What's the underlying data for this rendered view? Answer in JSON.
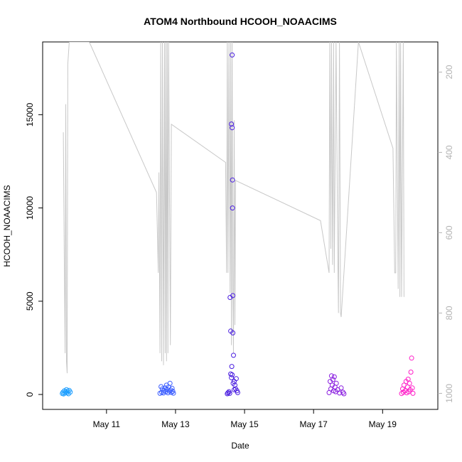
{
  "chart_data": {
    "type": "scatter",
    "title": "ATOM4 Northbound HCOOH_NOAACIMS",
    "xlabel": "Date",
    "ylabel": "HCOOH_NOAACIMS",
    "x_unit": "day of May",
    "xlim": [
      9.15,
      20.6
    ],
    "ylim": [
      -800,
      18900
    ],
    "x_ticks": [
      {
        "value": 11,
        "label": "May 11"
      },
      {
        "value": 13,
        "label": "May 13"
      },
      {
        "value": 15,
        "label": "May 15"
      },
      {
        "value": 17,
        "label": "May 17"
      },
      {
        "value": 19,
        "label": "May 19"
      }
    ],
    "y_ticks": [
      0,
      5000,
      10000,
      15000
    ],
    "right_axis": {
      "ticks": [
        200,
        400,
        600,
        800,
        1000
      ],
      "range_top_to_bottom": [
        125,
        1040
      ],
      "inverted": true,
      "color": "#b3b3b3",
      "line_color": "#c8c8c8"
    },
    "point_colors_by_flight": [
      "#1e90ff",
      "#2b6cff",
      "#3a1eff",
      "#8a1eff",
      "#ff1ec8"
    ],
    "series": [
      {
        "color": "#1e9fff",
        "points": [
          [
            9.72,
            50
          ],
          [
            9.74,
            120
          ],
          [
            9.76,
            30
          ],
          [
            9.78,
            200
          ],
          [
            9.8,
            80
          ],
          [
            9.82,
            150
          ],
          [
            9.84,
            260
          ],
          [
            9.86,
            90
          ],
          [
            9.88,
            180
          ],
          [
            9.9,
            40
          ],
          [
            9.92,
            220
          ],
          [
            9.95,
            130
          ]
        ]
      },
      {
        "color": "#3a5cff",
        "points": [
          [
            12.55,
            60
          ],
          [
            12.58,
            420
          ],
          [
            12.6,
            120
          ],
          [
            12.62,
            300
          ],
          [
            12.65,
            80
          ],
          [
            12.67,
            210
          ],
          [
            12.7,
            350
          ],
          [
            12.72,
            150
          ],
          [
            12.74,
            500
          ],
          [
            12.76,
            260
          ],
          [
            12.78,
            90
          ],
          [
            12.8,
            400
          ],
          [
            12.82,
            180
          ],
          [
            12.84,
            600
          ],
          [
            12.86,
            240
          ],
          [
            12.88,
            110
          ],
          [
            12.9,
            330
          ],
          [
            12.92,
            170
          ],
          [
            12.94,
            70
          ]
        ]
      },
      {
        "color": "#4a1ee0",
        "points": [
          [
            14.5,
            40
          ],
          [
            14.52,
            90
          ],
          [
            14.55,
            150
          ],
          [
            14.57,
            60
          ],
          [
            14.58,
            5200
          ],
          [
            14.6,
            3400
          ],
          [
            14.62,
            14500
          ],
          [
            14.63,
            1500
          ],
          [
            14.64,
            18200
          ],
          [
            14.64,
            14300
          ],
          [
            14.65,
            11500
          ],
          [
            14.65,
            10000
          ],
          [
            14.66,
            5300
          ],
          [
            14.66,
            3300
          ],
          [
            14.68,
            2100
          ],
          [
            14.6,
            1100
          ],
          [
            14.62,
            900
          ],
          [
            14.7,
            700
          ],
          [
            14.72,
            500
          ],
          [
            14.74,
            300
          ],
          [
            14.76,
            850
          ],
          [
            14.78,
            200
          ],
          [
            14.8,
            100
          ],
          [
            14.64,
            1050
          ],
          [
            14.67,
            600
          ],
          [
            14.7,
            250
          ]
        ]
      },
      {
        "color": "#8a1ee0",
        "points": [
          [
            17.45,
            100
          ],
          [
            17.48,
            700
          ],
          [
            17.5,
            300
          ],
          [
            17.52,
            1000
          ],
          [
            17.54,
            500
          ],
          [
            17.56,
            800
          ],
          [
            17.58,
            200
          ],
          [
            17.6,
            950
          ],
          [
            17.62,
            400
          ],
          [
            17.64,
            150
          ],
          [
            17.66,
            600
          ],
          [
            17.7,
            250
          ],
          [
            17.75,
            80
          ],
          [
            17.8,
            350
          ],
          [
            17.85,
            120
          ],
          [
            17.88,
            40
          ]
        ]
      },
      {
        "color": "#ff1ec8",
        "points": [
          [
            19.55,
            50
          ],
          [
            19.58,
            300
          ],
          [
            19.6,
            120
          ],
          [
            19.62,
            500
          ],
          [
            19.65,
            200
          ],
          [
            19.68,
            700
          ],
          [
            19.7,
            90
          ],
          [
            19.72,
            400
          ],
          [
            19.74,
            820
          ],
          [
            19.76,
            150
          ],
          [
            19.78,
            600
          ],
          [
            19.8,
            250
          ],
          [
            19.82,
            1200
          ],
          [
            19.84,
            1950
          ],
          [
            19.86,
            350
          ],
          [
            19.88,
            60
          ]
        ]
      }
    ],
    "altitude_line": [
      [
        9.75,
        350
      ],
      [
        9.78,
        700
      ],
      [
        9.8,
        900
      ],
      [
        9.82,
        280
      ],
      [
        9.84,
        920
      ],
      [
        9.86,
        950
      ],
      [
        9.88,
        180
      ],
      [
        9.92,
        125
      ],
      [
        10.5,
        125
      ],
      [
        12.45,
        500
      ],
      [
        12.5,
        700
      ],
      [
        12.52,
        450
      ],
      [
        12.55,
        900
      ],
      [
        12.57,
        125
      ],
      [
        12.6,
        920
      ],
      [
        12.62,
        125
      ],
      [
        12.65,
        930
      ],
      [
        12.68,
        125
      ],
      [
        12.7,
        900
      ],
      [
        12.72,
        125
      ],
      [
        12.74,
        920
      ],
      [
        12.76,
        125
      ],
      [
        12.78,
        900
      ],
      [
        12.8,
        125
      ],
      [
        12.85,
        880
      ],
      [
        12.88,
        330
      ],
      [
        14.45,
        425
      ],
      [
        14.48,
        700
      ],
      [
        14.5,
        125
      ],
      [
        14.52,
        700
      ],
      [
        14.55,
        125
      ],
      [
        14.58,
        750
      ],
      [
        14.6,
        125
      ],
      [
        14.62,
        880
      ],
      [
        14.64,
        125
      ],
      [
        14.66,
        750
      ],
      [
        14.68,
        900
      ],
      [
        14.7,
        320
      ],
      [
        14.72,
        830
      ],
      [
        14.74,
        470
      ],
      [
        17.2,
        570
      ],
      [
        17.45,
        700
      ],
      [
        17.47,
        125
      ],
      [
        17.5,
        640
      ],
      [
        17.52,
        125
      ],
      [
        17.55,
        680
      ],
      [
        17.58,
        125
      ],
      [
        17.6,
        700
      ],
      [
        17.65,
        125
      ],
      [
        17.7,
        650
      ],
      [
        17.72,
        800
      ],
      [
        17.75,
        125
      ],
      [
        17.78,
        800
      ],
      [
        17.8,
        810
      ],
      [
        18.3,
        125
      ],
      [
        19.3,
        390
      ],
      [
        19.35,
        700
      ],
      [
        19.38,
        700
      ],
      [
        19.4,
        125
      ],
      [
        19.45,
        740
      ],
      [
        19.48,
        125
      ],
      [
        19.5,
        760
      ],
      [
        19.52,
        125
      ],
      [
        19.55,
        760
      ],
      [
        19.6,
        125
      ],
      [
        19.62,
        760
      ]
    ]
  }
}
